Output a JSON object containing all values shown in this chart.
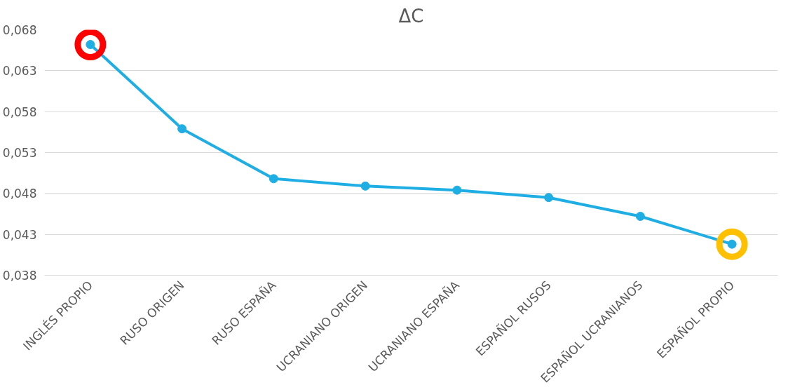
{
  "chart_data": {
    "type": "line",
    "title": "ΔC",
    "categories": [
      "INGLÉS PROPIO",
      "RUSO ORIGEN",
      "RUSO ESPAÑA",
      "UCRANIANO ORIGEN",
      "UCRANIANO ESPAÑA",
      "ESPAÑOL RUSOS",
      "ESPAÑOL UCRANIANOS",
      "ESPAÑOL PROPIO"
    ],
    "series": [
      {
        "color": "#1eaee4",
        "values": [
          0.0662,
          0.0559,
          0.0498,
          0.0489,
          0.0484,
          0.0475,
          0.0452,
          0.0418
        ],
        "marker": "circle"
      },
      {
        "type": "scatter",
        "color": "#ff0000",
        "x": [
          "INGLÉS PROPIO"
        ],
        "values": [
          0.0662
        ],
        "marker": "circle"
      },
      {
        "type": "scatter",
        "color": "#ffc000",
        "x": [
          "ESPAÑOL PROPIO"
        ],
        "values": [
          0.0418
        ],
        "marker": "circle"
      }
    ],
    "ylim": [
      0.038,
      0.068
    ],
    "yticks": [
      {
        "value": 0.038,
        "label": "0,038"
      },
      {
        "value": 0.043,
        "label": "0,043"
      },
      {
        "value": 0.048,
        "label": "0,048"
      },
      {
        "value": 0.053,
        "label": "0,053"
      },
      {
        "value": 0.058,
        "label": "0,058"
      },
      {
        "value": 0.063,
        "label": "0,063"
      },
      {
        "value": 0.068,
        "label": "0,068"
      }
    ],
    "grid": "y"
  }
}
